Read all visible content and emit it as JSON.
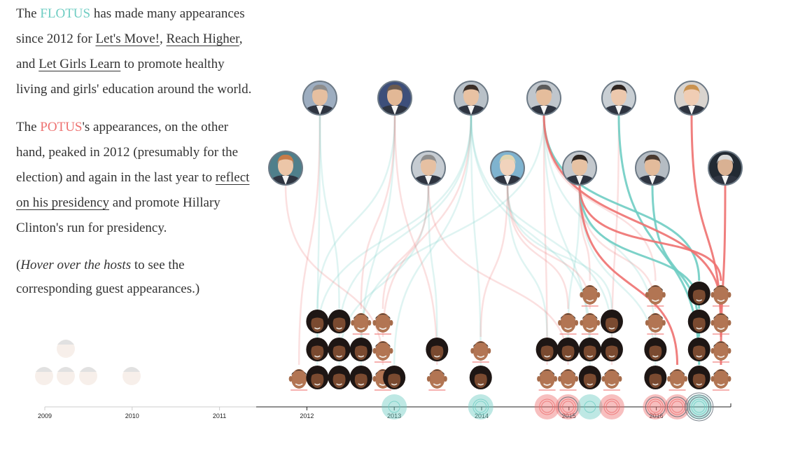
{
  "narrative": {
    "p1": {
      "t1": "The ",
      "flotus": "FLOTUS",
      "t2": " has made many appearances since 2012 for ",
      "link1": "Let's Move!",
      "t3": ", ",
      "link2": "Reach Higher",
      "t4": ", and ",
      "link3": "Let Girls Learn",
      "t5": " to promote healthy living and girls' education around the world."
    },
    "p2": {
      "t1": "The ",
      "potus": "POTUS",
      "t2": "'s appearances, on the other hand, peaked in 2012 (presumably for the election) and again in the last year to ",
      "link1": "reflect on his presidency",
      "t3": " and promote Hillary Clinton's run for presidency."
    },
    "p3": {
      "t1": "(",
      "hint": "Hover over the hosts",
      "t2": " to see the corresponding guest appearances.)"
    }
  },
  "colors": {
    "flotus": "#6fcdc3",
    "potus": "#ee7170",
    "text": "#333333",
    "axis": "#222222",
    "faded_axis": "#cccccc",
    "host_stroke": "#6d7a86"
  },
  "icons": {
    "host": "host-portrait-icon",
    "flotus_guest": "michelle-obama-portrait-icon",
    "potus_guest": "barack-obama-portrait-icon"
  },
  "chart_data": {
    "type": "scatter",
    "x_axis": {
      "ticks": [
        "2009",
        "2010",
        "2011",
        "2012",
        "2013",
        "2014",
        "2015",
        "2016"
      ],
      "faded_ticks": [
        "2009",
        "2010",
        "2011"
      ],
      "range": [
        "2009",
        "2016"
      ]
    },
    "series": [
      {
        "name": "FLOTUS",
        "color": "#6fcdc3"
      },
      {
        "name": "POTUS",
        "color": "#ee7170"
      }
    ],
    "hosts": [
      {
        "id": "h0",
        "row": 1,
        "skin": "#e6bfa0",
        "hair": "#8d8d8d",
        "bg": "#9dadc0"
      },
      {
        "id": "h1",
        "row": 1,
        "skin": "#e2b896",
        "hair": "#6b5a4e",
        "bg": "#3d4f7a"
      },
      {
        "id": "h2",
        "row": 1,
        "skin": "#e8c2a3",
        "hair": "#3b2f28",
        "bg": "#b9c1c8"
      },
      {
        "id": "h3",
        "row": 1,
        "skin": "#e5bd9c",
        "hair": "#5b5b5b",
        "bg": "#c0c6cc"
      },
      {
        "id": "h4",
        "row": 1,
        "skin": "#ecc8ad",
        "hair": "#2f2622",
        "bg": "#c9cfd4"
      },
      {
        "id": "h5",
        "row": 1,
        "skin": "#f0cdb4",
        "hair": "#c9924f",
        "bg": "#d9d4cf"
      },
      {
        "id": "h6",
        "row": 2,
        "skin": "#ecc6a8",
        "hair": "#c77b49",
        "bg": "#4f7f8b"
      },
      {
        "id": "h7",
        "row": 2,
        "skin": "#e6c0a2",
        "hair": "#8e8e8e",
        "bg": "#c6ccd2"
      },
      {
        "id": "h8",
        "row": 2,
        "skin": "#f1d3bc",
        "hair": "#e0d5b0",
        "bg": "#7fb3cf"
      },
      {
        "id": "h9",
        "row": 2,
        "skin": "#e7c2a3",
        "hair": "#2c241f",
        "bg": "#c3c8cd"
      },
      {
        "id": "h10",
        "row": 2,
        "skin": "#e3bb9b",
        "hair": "#4a3a30",
        "bg": "#b5bcc3"
      },
      {
        "id": "h11",
        "row": 2,
        "skin": "#d9b193",
        "hair": "#d8d8d8",
        "bg": "#222a33"
      }
    ],
    "appearances": [
      {
        "year": 2011.91,
        "guest": "POTUS",
        "host": "h0",
        "stack": 0
      },
      {
        "year": 2012.12,
        "guest": "FLOTUS",
        "host": "h0",
        "stack": 0
      },
      {
        "year": 2012.12,
        "guest": "FLOTUS",
        "host": "h2",
        "stack": 1
      },
      {
        "year": 2012.12,
        "guest": "FLOTUS",
        "host": "h1",
        "stack": 2
      },
      {
        "year": 2012.37,
        "guest": "FLOTUS",
        "host": "h7",
        "stack": 0
      },
      {
        "year": 2012.37,
        "guest": "FLOTUS",
        "host": "h2",
        "stack": 1
      },
      {
        "year": 2012.37,
        "guest": "FLOTUS",
        "host": "h0",
        "stack": 2
      },
      {
        "year": 2012.62,
        "guest": "FLOTUS",
        "host": "h1",
        "stack": 0
      },
      {
        "year": 2012.62,
        "guest": "FLOTUS",
        "host": "h3",
        "stack": 1
      },
      {
        "year": 2012.62,
        "guest": "POTUS",
        "host": "h1",
        "stack": 2
      },
      {
        "year": 2012.87,
        "guest": "POTUS",
        "host": "h6",
        "stack": 0
      },
      {
        "year": 2012.87,
        "guest": "POTUS",
        "host": "h2",
        "stack": 1
      },
      {
        "year": 2012.87,
        "guest": "POTUS",
        "host": "h7",
        "stack": 2
      },
      {
        "year": 2013.0,
        "guest": "FLOTUS",
        "host": "h2",
        "stack": 0
      },
      {
        "year": 2013.49,
        "guest": "POTUS",
        "host": "h1",
        "stack": 0
      },
      {
        "year": 2013.49,
        "guest": "FLOTUS",
        "host": "h7",
        "stack": 1
      },
      {
        "year": 2013.99,
        "guest": "FLOTUS",
        "host": "h2",
        "stack": 0
      },
      {
        "year": 2013.99,
        "guest": "POTUS",
        "host": "h8",
        "stack": 1
      },
      {
        "year": 2014.75,
        "guest": "POTUS",
        "host": "h3",
        "stack": 0
      },
      {
        "year": 2014.75,
        "guest": "FLOTUS",
        "host": "h8",
        "stack": 1
      },
      {
        "year": 2014.99,
        "guest": "POTUS",
        "host": "h7",
        "stack": 0
      },
      {
        "year": 2014.99,
        "guest": "FLOTUS",
        "host": "h9",
        "stack": 1
      },
      {
        "year": 2014.99,
        "guest": "POTUS",
        "host": "h8",
        "stack": 2
      },
      {
        "year": 2015.24,
        "guest": "FLOTUS",
        "host": "h3",
        "stack": 0
      },
      {
        "year": 2015.24,
        "guest": "FLOTUS",
        "host": "h2",
        "stack": 1
      },
      {
        "year": 2015.24,
        "guest": "POTUS",
        "host": "h8",
        "stack": 2
      },
      {
        "year": 2015.24,
        "guest": "POTUS",
        "host": "h9",
        "stack": 3
      },
      {
        "year": 2015.49,
        "guest": "POTUS",
        "host": "h4",
        "stack": 0
      },
      {
        "year": 2015.49,
        "guest": "FLOTUS",
        "host": "h2",
        "stack": 1
      },
      {
        "year": 2015.49,
        "guest": "FLOTUS",
        "host": "h8",
        "stack": 2
      },
      {
        "year": 2015.99,
        "guest": "FLOTUS",
        "host": "h9",
        "stack": 0
      },
      {
        "year": 2015.99,
        "guest": "FLOTUS",
        "host": "h3",
        "stack": 1
      },
      {
        "year": 2015.99,
        "guest": "POTUS",
        "host": "h9",
        "stack": 2
      },
      {
        "year": 2015.99,
        "guest": "POTUS",
        "host": "h3",
        "stack": 3
      },
      {
        "year": 2016.24,
        "guest": "POTUS",
        "host": "h9",
        "stack": 0
      },
      {
        "year": 2016.49,
        "guest": "FLOTUS",
        "host": "h4",
        "stack": 0
      },
      {
        "year": 2016.49,
        "guest": "FLOTUS",
        "host": "h10",
        "stack": 1
      },
      {
        "year": 2016.49,
        "guest": "FLOTUS",
        "host": "h9",
        "stack": 2
      },
      {
        "year": 2016.49,
        "guest": "FLOTUS",
        "host": "h3",
        "stack": 3
      },
      {
        "year": 2016.74,
        "guest": "POTUS",
        "host": "h11",
        "stack": 0
      },
      {
        "year": 2016.74,
        "guest": "POTUS",
        "host": "h5",
        "stack": 1
      },
      {
        "year": 2016.74,
        "guest": "POTUS",
        "host": "h3",
        "stack": 2
      },
      {
        "year": 2016.74,
        "guest": "POTUS",
        "host": "h9",
        "stack": 3
      }
    ],
    "timeline_circles": [
      {
        "year": 2013.0,
        "guest": "FLOTUS",
        "rings": 1
      },
      {
        "year": 2013.99,
        "guest": "FLOTUS",
        "rings": 2
      },
      {
        "year": 2014.75,
        "guest": "POTUS",
        "rings": 2
      },
      {
        "year": 2014.99,
        "guest": "POTUS",
        "rings": 3
      },
      {
        "year": 2015.24,
        "guest": "FLOTUS",
        "rings": 1
      },
      {
        "year": 2015.49,
        "guest": "POTUS",
        "rings": 2
      },
      {
        "year": 2015.99,
        "guest": "POTUS",
        "rings": 3
      },
      {
        "year": 2016.24,
        "guest": "POTUS",
        "rings": 3
      },
      {
        "year": 2016.49,
        "guest": "FLOTUS",
        "rings": 5
      }
    ],
    "grid": false,
    "legend": "none"
  }
}
